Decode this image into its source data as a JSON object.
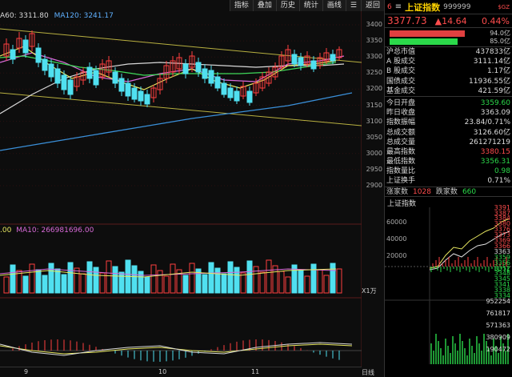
{
  "toolbar": [
    "指标",
    "叠加",
    "历史",
    "统计",
    "画线",
    "☰",
    "返回"
  ],
  "ma_legend": {
    "ma60": "A60: 3311.80",
    "ma120": "MA120: 3241.17"
  },
  "vol_legend": {
    "a": ".00",
    "b": "MA10: 266981696.00"
  },
  "price_axis": [
    "3400",
    "3350",
    "3300",
    "3250",
    "3200",
    "3150",
    "3100",
    "3050",
    "3000",
    "2950",
    "2900"
  ],
  "vol_axis_label": "X1万",
  "x_dates": [
    "9",
    "10",
    "11"
  ],
  "date_axis_label": "日线",
  "header": {
    "code_prefix": "6",
    "menu_icon": "≡",
    "name": "上证指数",
    "code": "999999",
    "flag": "$GZ"
  },
  "quote": {
    "price": "3377.73",
    "change": "▲14.64",
    "pct": "0.44%"
  },
  "bars": [
    {
      "label": "94.0亿",
      "color": "#e04040",
      "fraction": 0.94
    },
    {
      "label": "85.0亿",
      "color": "#2bd94a",
      "fraction": 0.85
    }
  ],
  "info1": [
    {
      "k": "沪总市值",
      "v": "437833亿",
      "c": ""
    },
    {
      "k": "A 股成交",
      "v": "3111.14亿",
      "c": ""
    },
    {
      "k": "B 股成交",
      "v": "1.17亿",
      "c": ""
    },
    {
      "k": "国债成交",
      "v": "11936.55亿",
      "c": ""
    },
    {
      "k": "基金成交",
      "v": "421.59亿",
      "c": ""
    }
  ],
  "info2": [
    {
      "k": "今日开盘",
      "v": "3359.60",
      "c": "green"
    },
    {
      "k": "昨日收盘",
      "v": "3363.09",
      "c": ""
    },
    {
      "k": "指数振幅",
      "v": "23.84/0.71%",
      "c": ""
    },
    {
      "k": "总成交额",
      "v": "3126.60亿",
      "c": ""
    },
    {
      "k": "总成交量",
      "v": "261271219",
      "c": ""
    },
    {
      "k": "最高指数",
      "v": "3380.15",
      "c": "red"
    },
    {
      "k": "最低指数",
      "v": "3356.31",
      "c": "green"
    },
    {
      "k": "指数量比",
      "v": "0.98",
      "c": "green"
    },
    {
      "k": "上证换手",
      "v": "0.71%",
      "c": ""
    }
  ],
  "updown": {
    "up_label": "涨家数",
    "up": "1028",
    "down_label": "跌家数",
    "down": "660"
  },
  "mini": {
    "title": "上证指数",
    "left_axis": [
      "60000",
      "40000",
      "20000"
    ],
    "right_axis": [
      "3391",
      "3387",
      "3384",
      "3380",
      "3376",
      "3373",
      "3369",
      "3366",
      "3363",
      "3359",
      "3356",
      "3352",
      "3348",
      "3345",
      "3341",
      "3338",
      "3334"
    ],
    "vol_axis": [
      "952254",
      "761817",
      "571363",
      "380909",
      "190472"
    ]
  }
}
